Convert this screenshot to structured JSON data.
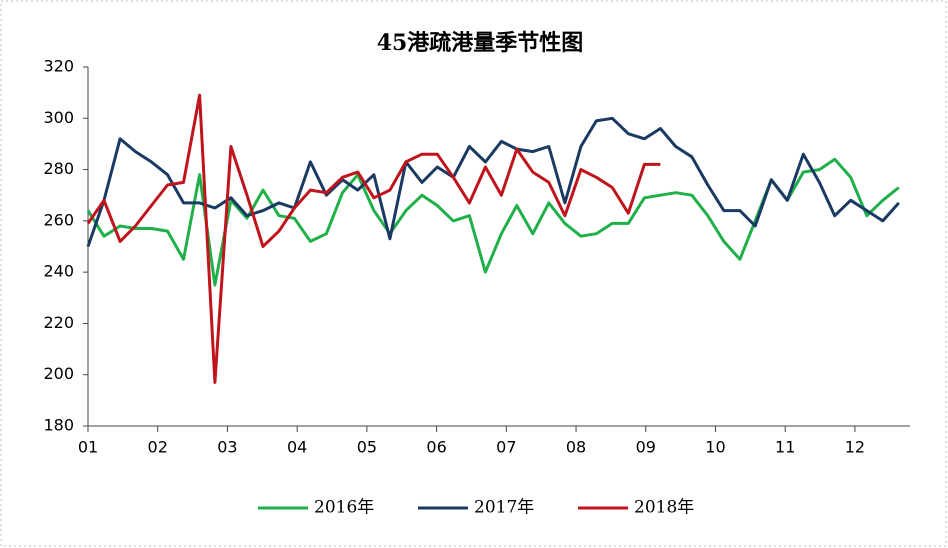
{
  "chart_data": {
    "type": "line",
    "title": "45港疏港量季节性图",
    "x": [
      1.0,
      1.23,
      1.46,
      1.68,
      1.91,
      2.14,
      2.37,
      2.6,
      2.82,
      3.05,
      3.28,
      3.51,
      3.74,
      3.96,
      4.19,
      4.42,
      4.65,
      4.87,
      5.1,
      5.33,
      5.56,
      5.79,
      6.01,
      6.24,
      6.47,
      6.7,
      6.93,
      7.15,
      7.38,
      7.61,
      7.84,
      8.07,
      8.29,
      8.52,
      8.75,
      8.98,
      9.21,
      9.43,
      9.66,
      9.89,
      10.12,
      10.35,
      10.57,
      10.8,
      11.03,
      11.26,
      11.49,
      11.71,
      11.94,
      12.17,
      12.4,
      12.63
    ],
    "series": [
      {
        "name": "2016年",
        "color": "#1fb04a",
        "values": [
          264,
          254,
          258,
          257,
          257,
          256,
          245,
          278,
          235,
          268,
          261,
          272,
          262,
          261,
          252,
          255,
          271,
          278,
          264,
          255,
          264,
          270,
          266,
          260,
          262,
          240,
          255,
          266,
          255,
          267,
          259,
          254,
          255,
          259,
          259,
          269,
          270,
          271,
          270,
          262,
          252,
          245,
          260,
          276,
          268,
          279,
          280,
          284,
          277,
          262,
          268,
          273
        ]
      },
      {
        "name": "2017年",
        "color": "#1a3a63",
        "values": [
          250,
          268,
          292,
          287,
          283,
          278,
          267,
          267,
          265,
          269,
          262,
          264,
          267,
          265,
          283,
          270,
          276,
          272,
          278,
          253,
          283,
          275,
          281,
          277,
          289,
          283,
          291,
          288,
          287,
          289,
          267,
          289,
          299,
          300,
          294,
          292,
          296,
          289,
          285,
          274,
          264,
          264,
          258,
          276,
          268,
          286,
          275,
          262,
          268,
          264,
          260,
          267
        ]
      },
      {
        "name": "2018年",
        "color": "#c0141c",
        "values": [
          259,
          268,
          252,
          258,
          266,
          274,
          275,
          309,
          197,
          289,
          270,
          250,
          256,
          265,
          272,
          271,
          277,
          279,
          269,
          272,
          283,
          286,
          286,
          277,
          267,
          281,
          270,
          288,
          279,
          275,
          262,
          280,
          277,
          273,
          263,
          282,
          282,
          null,
          null,
          null,
          null,
          null,
          null,
          null,
          null,
          null,
          null,
          null,
          null,
          null,
          null,
          null
        ]
      }
    ],
    "xlim": [
      1,
      12.79
    ],
    "xticks": [
      {
        "value": 1,
        "label": "01"
      },
      {
        "value": 2,
        "label": "02"
      },
      {
        "value": 3,
        "label": "03"
      },
      {
        "value": 4,
        "label": "04"
      },
      {
        "value": 5,
        "label": "05"
      },
      {
        "value": 6,
        "label": "06"
      },
      {
        "value": 7,
        "label": "07"
      },
      {
        "value": 8,
        "label": "08"
      },
      {
        "value": 9,
        "label": "09"
      },
      {
        "value": 10,
        "label": "10"
      },
      {
        "value": 11,
        "label": "11"
      },
      {
        "value": 12,
        "label": "12"
      }
    ],
    "ylim": [
      180,
      320
    ],
    "yticks": [
      180,
      200,
      220,
      240,
      260,
      280,
      300,
      320
    ],
    "grid": false,
    "legend": "bottom"
  }
}
